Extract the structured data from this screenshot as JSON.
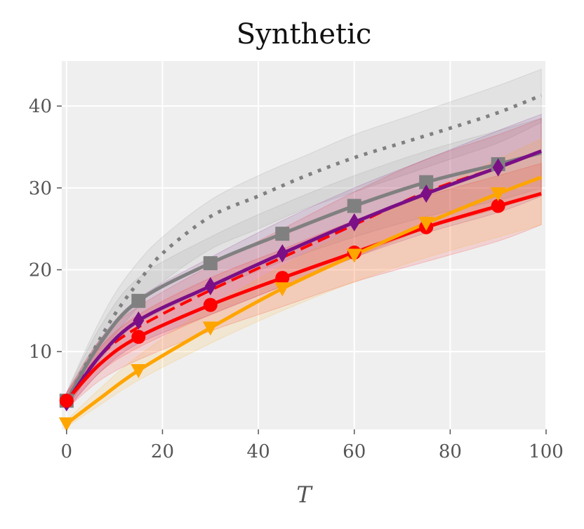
{
  "chart_data": {
    "type": "line",
    "title": "Synthetic",
    "xlabel": "T",
    "ylabel": "",
    "xlim": [
      -1,
      100
    ],
    "ylim": [
      0.5,
      45.5
    ],
    "xticks": [
      0,
      20,
      40,
      60,
      80,
      100
    ],
    "xtick_labels": [
      "0",
      "20",
      "40",
      "60",
      "80",
      "100"
    ],
    "yticks": [
      10,
      20,
      30,
      40
    ],
    "ytick_labels": [
      "10",
      "20",
      "30",
      "40"
    ],
    "grid": true,
    "background": "#efefef",
    "series": [
      {
        "name": "gray-dotted",
        "color": "#808080",
        "style": "dotted",
        "marker": "none",
        "x": [
          0,
          5,
          10,
          15,
          20,
          30,
          40,
          50,
          60,
          70,
          80,
          90,
          99
        ],
        "y": [
          4.0,
          9.5,
          14.5,
          18.5,
          22.0,
          26.5,
          29.0,
          31.5,
          33.7,
          35.5,
          37.3,
          39.2,
          41.3
        ],
        "band_lower": [
          3.0,
          7.5,
          12.0,
          15.5,
          18.5,
          22.5,
          25.0,
          27.5,
          29.5,
          31.5,
          33.5,
          35.5,
          38.0
        ],
        "band_upper": [
          5.0,
          11.5,
          17.0,
          21.0,
          24.0,
          28.5,
          31.5,
          34.0,
          36.5,
          38.5,
          40.5,
          42.5,
          44.5
        ]
      },
      {
        "name": "red-dashed",
        "color": "#ff0000",
        "style": "dashed",
        "marker": "none",
        "x": [
          0,
          7,
          15,
          30,
          45,
          60,
          75,
          90,
          99
        ],
        "y": [
          4.0,
          9.5,
          13.0,
          17.5,
          21.5,
          25.5,
          29.5,
          32.5,
          34.5
        ],
        "band_lower": [
          3.0,
          7.5,
          10.5,
          14.5,
          18.0,
          21.5,
          25.0,
          27.5,
          29.5
        ],
        "band_upper": [
          5.0,
          11.5,
          15.5,
          20.5,
          25.0,
          29.5,
          33.5,
          36.5,
          38.5
        ]
      },
      {
        "name": "gray-square",
        "color": "#808080",
        "style": "solid",
        "marker": "square",
        "x": [
          0,
          7,
          15,
          30,
          45,
          60,
          75,
          90,
          99
        ],
        "y": [
          4.0,
          11.0,
          16.2,
          20.8,
          24.4,
          27.8,
          30.7,
          32.9,
          34.3
        ],
        "markers_x": [
          0,
          15,
          30,
          45,
          60,
          75,
          90
        ],
        "markers_y": [
          4.0,
          16.2,
          20.8,
          24.4,
          27.8,
          30.7,
          32.9
        ],
        "band_lower": [
          3.0,
          9.0,
          13.5,
          17.5,
          21.0,
          24.0,
          26.5,
          28.5,
          30.0
        ],
        "band_upper": [
          5.0,
          13.0,
          19.0,
          24.0,
          28.0,
          31.5,
          34.5,
          37.0,
          38.5
        ]
      },
      {
        "name": "purple-diamond",
        "color": "#7b0f86",
        "style": "solid",
        "marker": "diamond",
        "x": [
          0,
          7,
          15,
          30,
          45,
          60,
          75,
          90,
          99
        ],
        "y": [
          3.8,
          9.5,
          13.8,
          18.0,
          22.0,
          25.8,
          29.3,
          32.5,
          34.5
        ],
        "markers_x": [
          0,
          15,
          30,
          45,
          60,
          75,
          90
        ],
        "markers_y": [
          3.8,
          13.8,
          18.0,
          22.0,
          25.8,
          29.3,
          32.5
        ],
        "band_lower": [
          2.8,
          7.5,
          11.0,
          14.5,
          18.0,
          21.5,
          24.5,
          27.0,
          29.0
        ],
        "band_upper": [
          4.8,
          11.5,
          16.5,
          21.5,
          26.0,
          30.0,
          33.5,
          37.0,
          39.0
        ]
      },
      {
        "name": "red-circle",
        "color": "#ff0000",
        "style": "solid",
        "marker": "circle",
        "x": [
          0,
          7,
          15,
          30,
          45,
          60,
          75,
          90,
          99
        ],
        "y": [
          4.0,
          8.5,
          11.8,
          15.7,
          19.0,
          22.1,
          25.2,
          27.8,
          29.3
        ],
        "markers_x": [
          0,
          15,
          30,
          45,
          60,
          75,
          90
        ],
        "markers_y": [
          4.0,
          11.8,
          15.7,
          19.0,
          22.1,
          25.2,
          27.8
        ],
        "band_lower": [
          3.0,
          6.5,
          9.0,
          12.5,
          15.5,
          18.5,
          21.0,
          23.5,
          25.5
        ],
        "band_upper": [
          5.0,
          10.5,
          14.5,
          19.0,
          22.5,
          26.0,
          29.0,
          31.5,
          33.0
        ]
      },
      {
        "name": "orange-triangle",
        "color": "#ffa500",
        "style": "solid",
        "marker": "triangle-down",
        "x": [
          0,
          7,
          15,
          30,
          45,
          60,
          75,
          90,
          99
        ],
        "y": [
          1.2,
          4.3,
          7.7,
          12.9,
          17.7,
          21.8,
          25.7,
          29.3,
          31.3
        ],
        "markers_x": [
          0,
          15,
          30,
          45,
          60,
          75,
          90
        ],
        "markers_y": [
          1.2,
          7.7,
          12.9,
          17.7,
          21.8,
          25.7,
          29.3
        ],
        "band_lower": [
          0.8,
          3.5,
          6.5,
          11.0,
          15.0,
          18.5,
          21.5,
          24.0,
          25.5
        ],
        "band_upper": [
          1.6,
          5.5,
          9.5,
          15.5,
          20.5,
          25.0,
          29.5,
          33.5,
          36.0
        ]
      }
    ]
  }
}
